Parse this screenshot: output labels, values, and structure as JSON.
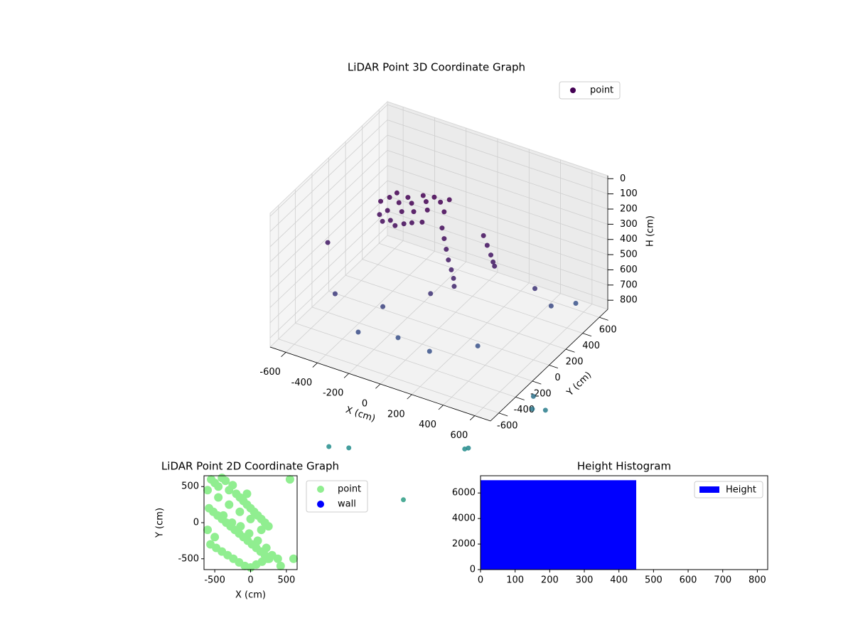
{
  "chart_data": [
    {
      "type": "scatter3d",
      "title": "LiDAR Point 3D Coordinate Graph",
      "x_label": "X (cm)",
      "y_label": "Y (cm)",
      "z_label": "H (cm)",
      "xlim": [
        -700,
        700
      ],
      "ylim": [
        -700,
        700
      ],
      "zlim": [
        -20,
        860
      ],
      "z_inverted": true,
      "xticks": [
        -600,
        -400,
        -200,
        0,
        200,
        400,
        600
      ],
      "yticks": [
        -600,
        -400,
        -200,
        0,
        200,
        400,
        600
      ],
      "zticks": [
        0,
        100,
        200,
        300,
        400,
        500,
        600,
        700,
        800
      ],
      "grid": true,
      "legend": "upper right",
      "colormap": "viridis",
      "series": [
        {
          "name": "point",
          "color": "#440154",
          "x": [
            -450,
            -420,
            -400,
            -380,
            -350,
            -330,
            -300,
            -280,
            -260,
            -240,
            -220,
            -200,
            -180,
            -160,
            -420,
            -380,
            -340,
            -300,
            -260,
            -220,
            -150,
            -120,
            -100,
            -60,
            -20,
            20,
            60,
            100,
            130,
            150,
            150,
            200,
            250,
            280,
            300,
            -600,
            -500,
            -250,
            0,
            450,
            500,
            -300,
            -100,
            100,
            300,
            550,
            600,
            650,
            620,
            400,
            350,
            -200,
            -300,
            200,
            600
          ],
          "y": [
            150,
            200,
            250,
            100,
            180,
            250,
            120,
            200,
            300,
            150,
            260,
            320,
            200,
            100,
            80,
            40,
            60,
            40,
            70,
            90,
            300,
            350,
            250,
            150,
            100,
            50,
            0,
            -40,
            -70,
            -100,
            250,
            200,
            150,
            120,
            100,
            -200,
            -300,
            -200,
            -100,
            300,
            400,
            -400,
            -300,
            -300,
            -100,
            600,
            0,
            50,
            -50,
            -400,
            -350,
            -700,
            -750,
            -800,
            -600
          ],
          "z": [
            260,
            250,
            240,
            270,
            250,
            245,
            260,
            240,
            235,
            255,
            240,
            235,
            250,
            270,
            300,
            310,
            300,
            310,
            300,
            290,
            240,
            240,
            260,
            300,
            330,
            360,
            390,
            420,
            450,
            480,
            330,
            350,
            370,
            390,
            400,
            400,
            650,
            700,
            580,
            600,
            750,
            780,
            800,
            820,
            820,
            820,
            1100,
            1200,
            1150,
            1300,
            1350,
            1350,
            1350,
            1500,
            1500
          ]
        }
      ]
    },
    {
      "type": "scatter",
      "title": "LiDAR Point 2D Coordinate Graph",
      "x_label": "X (cm)",
      "y_label": "Y (cm)",
      "xlim": [
        -650,
        650
      ],
      "ylim": [
        -650,
        650
      ],
      "xticks": [
        -500,
        0,
        500
      ],
      "yticks": [
        -500,
        0,
        500
      ],
      "legend": "outside right",
      "series": [
        {
          "name": "point",
          "color": "#90ee90",
          "x": [
            -600,
            -550,
            -500,
            -450,
            -400,
            -350,
            -300,
            -250,
            -200,
            -150,
            -100,
            -50,
            0,
            50,
            100,
            150,
            200,
            250,
            -580,
            -520,
            -460,
            -400,
            -340,
            -280,
            -220,
            -160,
            -100,
            -40,
            20,
            80,
            140,
            200,
            260,
            -560,
            -480,
            -400,
            -320,
            -240,
            -160,
            -80,
            0,
            80,
            160,
            240,
            300,
            -600,
            -500,
            -380,
            -260,
            -140,
            -20,
            100,
            220,
            -450,
            -300,
            -150,
            0,
            150,
            380,
            550,
            600,
            420,
            -50
          ],
          "y": [
            450,
            600,
            550,
            500,
            620,
            580,
            450,
            520,
            400,
            350,
            300,
            250,
            200,
            150,
            100,
            50,
            0,
            -50,
            200,
            150,
            100,
            50,
            0,
            -50,
            -100,
            -150,
            -200,
            -250,
            -300,
            -350,
            -400,
            -450,
            -500,
            -300,
            -350,
            -400,
            -450,
            -500,
            -550,
            -600,
            -620,
            -580,
            -540,
            -500,
            -450,
            -100,
            -200,
            100,
            0,
            -50,
            -150,
            -250,
            -350,
            350,
            250,
            150,
            50,
            -100,
            -500,
            600,
            -500,
            -600,
            400
          ]
        },
        {
          "name": "wall",
          "color": "#0000ff",
          "x": [],
          "y": []
        }
      ]
    },
    {
      "type": "histogram",
      "title": "Height Histogram",
      "xlim": [
        0,
        830
      ],
      "ylim": [
        0,
        7350
      ],
      "xticks": [
        0,
        100,
        200,
        300,
        400,
        500,
        600,
        700,
        800
      ],
      "yticks": [
        0,
        2000,
        4000,
        6000
      ],
      "legend": "upper right",
      "series": [
        {
          "name": "Height",
          "color": "#0000ff",
          "bins": [
            0,
            450
          ],
          "counts": [
            7000
          ]
        }
      ]
    }
  ]
}
